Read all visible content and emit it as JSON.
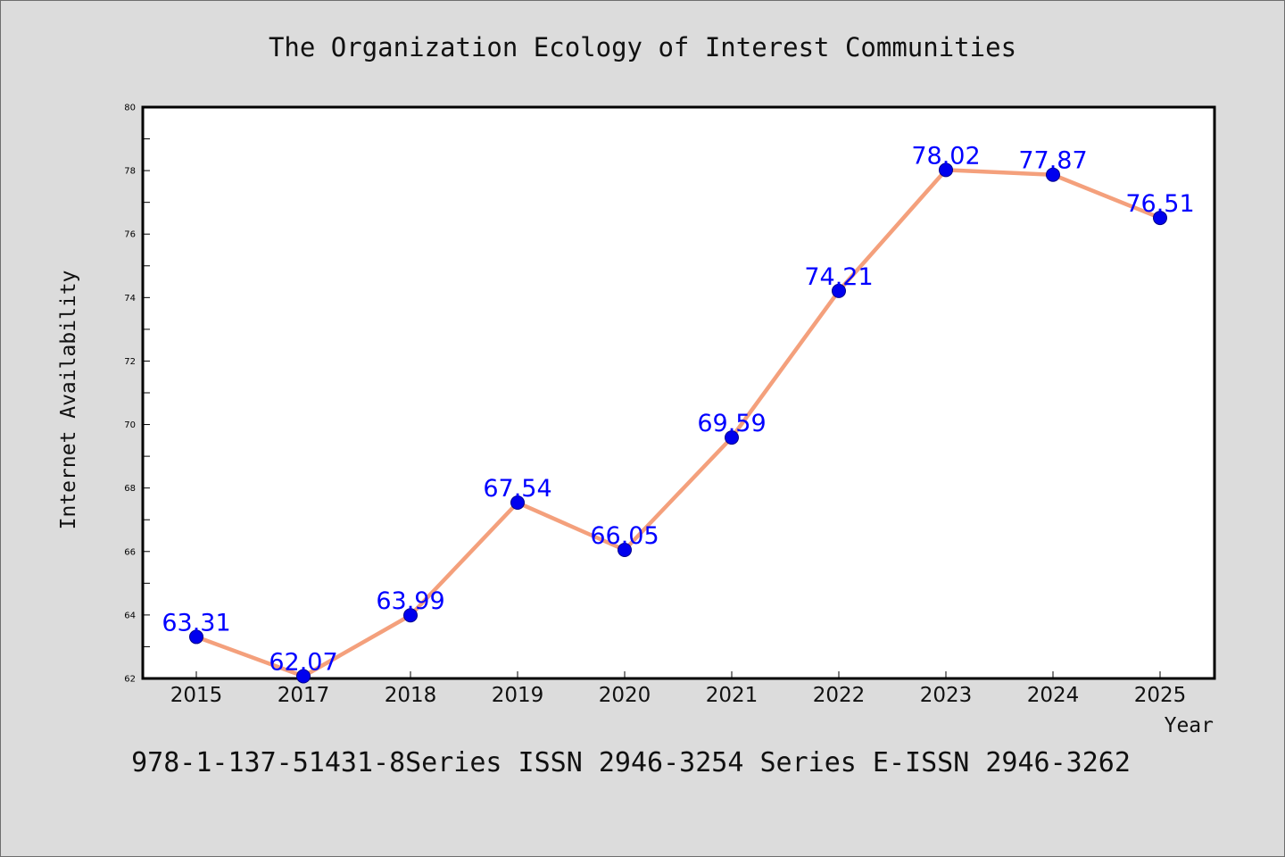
{
  "chart_data": {
    "type": "line",
    "title": "The Organization Ecology of Interest Communities",
    "xlabel": "Year",
    "ylabel": "Internet Availability",
    "categories": [
      "2015",
      "2017",
      "2018",
      "2019",
      "2020",
      "2021",
      "2022",
      "2023",
      "2024",
      "2025"
    ],
    "series": [
      {
        "values": [
          63.31,
          62.07,
          63.99,
          67.54,
          66.05,
          69.59,
          74.21,
          78.02,
          77.87,
          76.51
        ],
        "labels": [
          "63.31",
          "62.07",
          "63.99",
          "67.54",
          "66.05",
          "69.59",
          "74.21",
          "78.02",
          "77.87",
          "76.51"
        ]
      }
    ],
    "ylim": [
      62,
      80
    ],
    "yticks": [
      "62",
      "64",
      "66",
      "68",
      "70",
      "72",
      "74",
      "76",
      "78",
      "80"
    ],
    "grid": false,
    "legend": "none",
    "line_color": "#f4a07c",
    "marker_color": "#0000ee",
    "label_color": "#0000ff",
    "footer": "978-1-137-51431-8Series ISSN 2946-3254 Series E-ISSN 2946-3262"
  }
}
